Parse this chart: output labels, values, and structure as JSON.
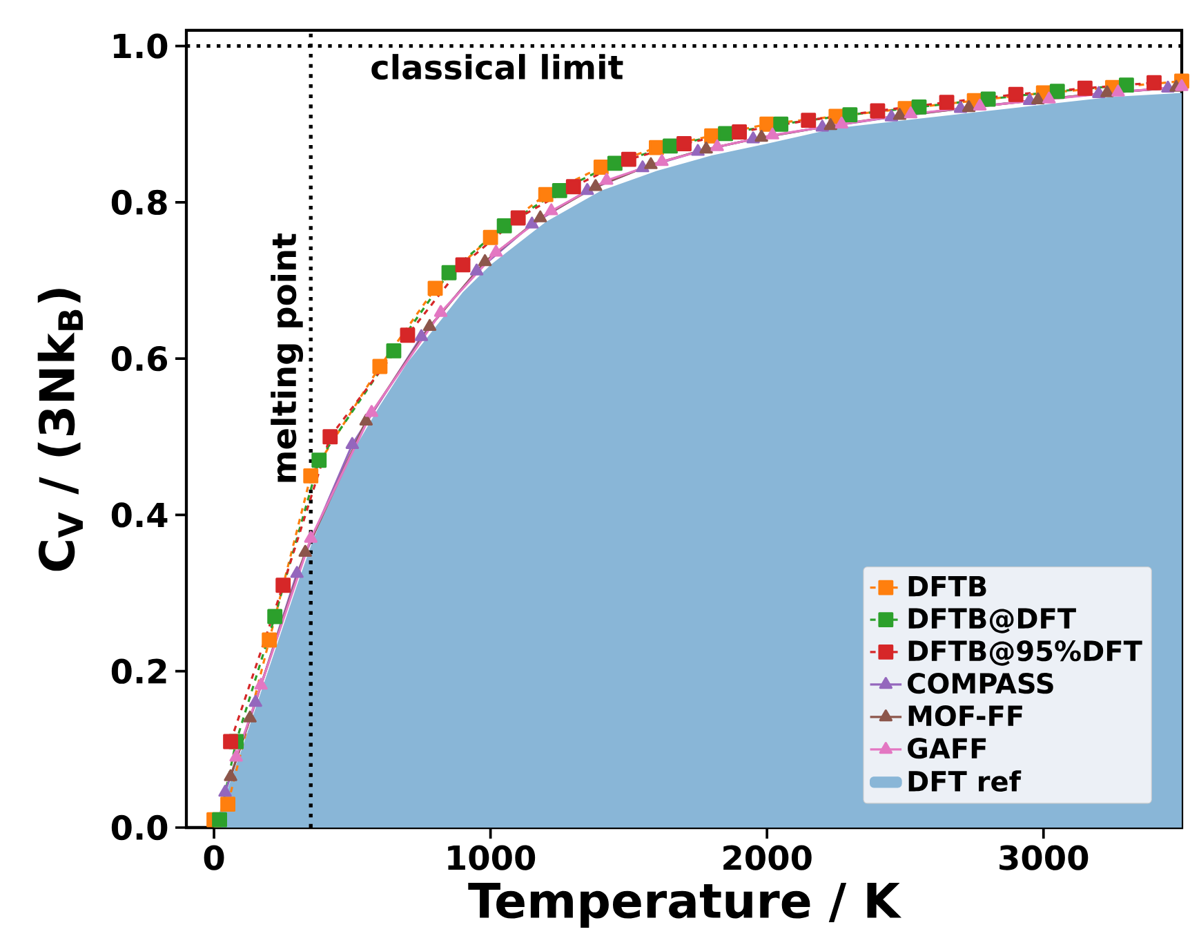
{
  "chart_data": {
    "type": "line",
    "xlabel": "Temperature / K",
    "ylabel": "C$_{V}$ / (3Nk$_{B}$)",
    "xlim": [
      -100,
      3500
    ],
    "ylim": [
      0,
      1.02
    ],
    "xticks": [
      0,
      1000,
      2000,
      3000
    ],
    "yticks": [
      {
        "value": 0,
        "label": "0.0"
      },
      0.2,
      0.4,
      0.6,
      0.8,
      {
        "value": 1,
        "label": "1.0"
      }
    ],
    "legend": "bottom right",
    "grid": false,
    "ref_lines": [
      {
        "axis": "y",
        "value": 1.0,
        "label": "classical limit",
        "line_style": "dotted",
        "color": "#000000"
      },
      {
        "axis": "x",
        "value": 350,
        "label": "melting point",
        "line_style": "dotted",
        "color": "#000000"
      }
    ],
    "series": [
      {
        "name": "DFTB",
        "color": "#ff7f0e",
        "marker": "square",
        "line_style": "dashed",
        "x": [
          0,
          50,
          200,
          350,
          600,
          800,
          1000,
          1200,
          1400,
          1600,
          1800,
          2000,
          2250,
          2500,
          2750,
          3000,
          3250,
          3500
        ],
        "values": [
          0.01,
          0.03,
          0.24,
          0.45,
          0.59,
          0.69,
          0.755,
          0.81,
          0.845,
          0.87,
          0.885,
          0.9,
          0.91,
          0.92,
          0.93,
          0.94,
          0.947,
          0.955
        ]
      },
      {
        "name": "DFTB@DFT",
        "color": "#2ca02c",
        "marker": "square",
        "line_style": "dashed",
        "x": [
          20,
          80,
          220,
          380,
          650,
          850,
          1050,
          1250,
          1450,
          1650,
          1850,
          2050,
          2300,
          2550,
          2800,
          3050,
          3300
        ],
        "values": [
          0.01,
          0.11,
          0.27,
          0.47,
          0.61,
          0.71,
          0.77,
          0.815,
          0.85,
          0.872,
          0.888,
          0.9,
          0.912,
          0.922,
          0.932,
          0.942,
          0.95
        ]
      },
      {
        "name": "DFTB@95%DFT",
        "color": "#d62728",
        "marker": "square",
        "line_style": "dashed",
        "x": [
          60,
          250,
          420,
          700,
          900,
          1100,
          1300,
          1500,
          1700,
          1900,
          2150,
          2400,
          2650,
          2900,
          3150,
          3400
        ],
        "values": [
          0.11,
          0.31,
          0.5,
          0.63,
          0.72,
          0.78,
          0.82,
          0.855,
          0.875,
          0.89,
          0.905,
          0.917,
          0.928,
          0.938,
          0.946,
          0.953
        ]
      },
      {
        "name": "COMPASS",
        "color": "#9467bd",
        "marker": "triangle",
        "line_style": "solid",
        "x": [
          40,
          150,
          300,
          500,
          750,
          950,
          1150,
          1350,
          1550,
          1750,
          1950,
          2200,
          2450,
          2700,
          2950,
          3200,
          3450
        ],
        "values": [
          0.045,
          0.16,
          0.325,
          0.49,
          0.628,
          0.712,
          0.772,
          0.815,
          0.844,
          0.865,
          0.881,
          0.896,
          0.909,
          0.92,
          0.93,
          0.939,
          0.946
        ]
      },
      {
        "name": "MOF-FF",
        "color": "#8c564b",
        "marker": "triangle",
        "line_style": "solid",
        "x": [
          60,
          130,
          330,
          550,
          780,
          980,
          1180,
          1380,
          1580,
          1780,
          1980,
          2230,
          2480,
          2730,
          2980,
          3230,
          3480
        ],
        "values": [
          0.065,
          0.14,
          0.352,
          0.52,
          0.641,
          0.724,
          0.78,
          0.82,
          0.848,
          0.868,
          0.883,
          0.898,
          0.911,
          0.921,
          0.931,
          0.94,
          0.947
        ]
      },
      {
        "name": "GAFF",
        "color": "#e377c2",
        "marker": "triangle",
        "line_style": "solid",
        "x": [
          80,
          170,
          350,
          570,
          820,
          1020,
          1220,
          1420,
          1620,
          1820,
          2020,
          2270,
          2520,
          2770,
          3020,
          3270,
          3500
        ],
        "values": [
          0.09,
          0.182,
          0.37,
          0.531,
          0.659,
          0.736,
          0.789,
          0.828,
          0.852,
          0.871,
          0.886,
          0.9,
          0.913,
          0.923,
          0.932,
          0.941,
          0.948
        ]
      },
      {
        "name": "DFT ref",
        "color": "#89b6d7",
        "type": "area",
        "x": [
          0,
          50,
          100,
          200,
          300,
          350,
          400,
          500,
          600,
          700,
          800,
          900,
          1000,
          1200,
          1400,
          1600,
          1800,
          2000,
          2250,
          2500,
          2750,
          3000,
          3250,
          3500
        ],
        "values": [
          0,
          0.05,
          0.1,
          0.205,
          0.31,
          0.36,
          0.405,
          0.48,
          0.54,
          0.595,
          0.64,
          0.685,
          0.72,
          0.775,
          0.815,
          0.84,
          0.86,
          0.875,
          0.895,
          0.905,
          0.915,
          0.925,
          0.935,
          0.94
        ]
      }
    ]
  }
}
